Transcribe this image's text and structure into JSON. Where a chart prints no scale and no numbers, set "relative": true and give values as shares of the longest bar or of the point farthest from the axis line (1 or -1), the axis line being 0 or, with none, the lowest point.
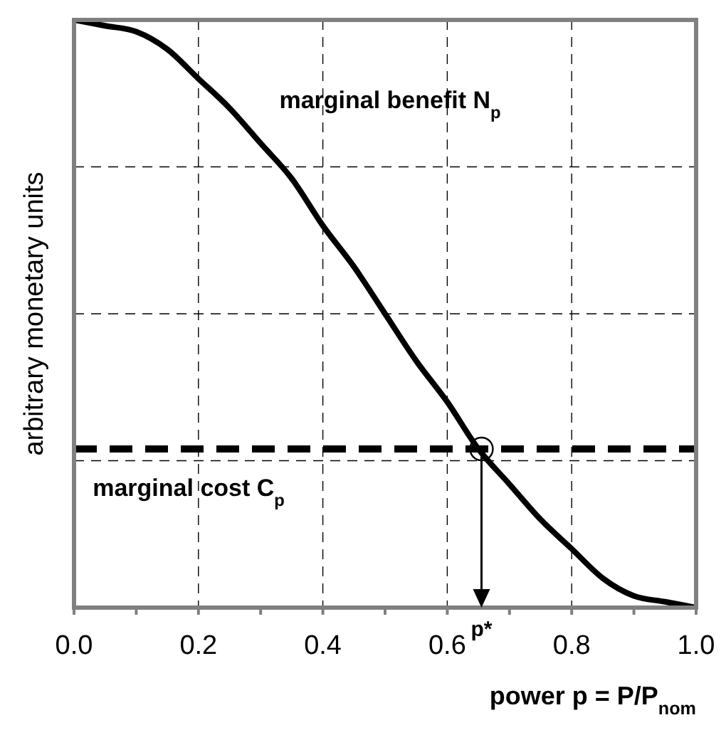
{
  "chart_data": {
    "type": "line",
    "relative": true,
    "xlabel": "power p = P/P$_{nom}$",
    "ylabel": "arbitrary monetary units",
    "xlim": [
      0,
      1
    ],
    "xticks": [
      {
        "value": 0,
        "label": "0.0"
      },
      {
        "value": 0.1,
        "label": null
      },
      {
        "value": 0.2,
        "label": "0.2"
      },
      {
        "value": 0.3,
        "label": null
      },
      {
        "value": 0.4,
        "label": "0.4"
      },
      {
        "value": 0.5,
        "label": null
      },
      {
        "value": 0.6,
        "label": "0.6"
      },
      {
        "value": 0.7,
        "label": null
      },
      {
        "value": 0.8,
        "label": "0.8"
      },
      {
        "value": 0.9,
        "label": null
      },
      {
        "value": 1,
        "label": "1.0"
      }
    ],
    "grid": true,
    "legend": false,
    "tick_labels": "x",
    "series": [
      {
        "name": "marginal benefit N$_{p}$",
        "color": "#000000",
        "line_style": "solid",
        "x": [
          0,
          0.05,
          0.1,
          0.15,
          0.2,
          0.25,
          0.3,
          0.35,
          0.4,
          0.45,
          0.5,
          0.55,
          0.6,
          0.65,
          0.7,
          0.75,
          0.8,
          0.85,
          0.9,
          0.95,
          1
        ],
        "values": [
          1,
          0.99,
          0.98,
          0.95,
          0.9,
          0.85,
          0.79,
          0.73,
          0.65,
          0.58,
          0.5,
          0.42,
          0.35,
          0.27,
          0.21,
          0.15,
          0.1,
          0.05,
          0.02,
          0.01,
          0
        ]
      },
      {
        "name": "marginal cost C$_{p}$",
        "color": "#000000",
        "line_style": "dashed",
        "x": [
          0,
          1
        ],
        "values": [
          0.27,
          0.27
        ]
      }
    ],
    "annotations": [
      {
        "text": "p*",
        "x": 0.655,
        "y": 0.27
      }
    ]
  }
}
